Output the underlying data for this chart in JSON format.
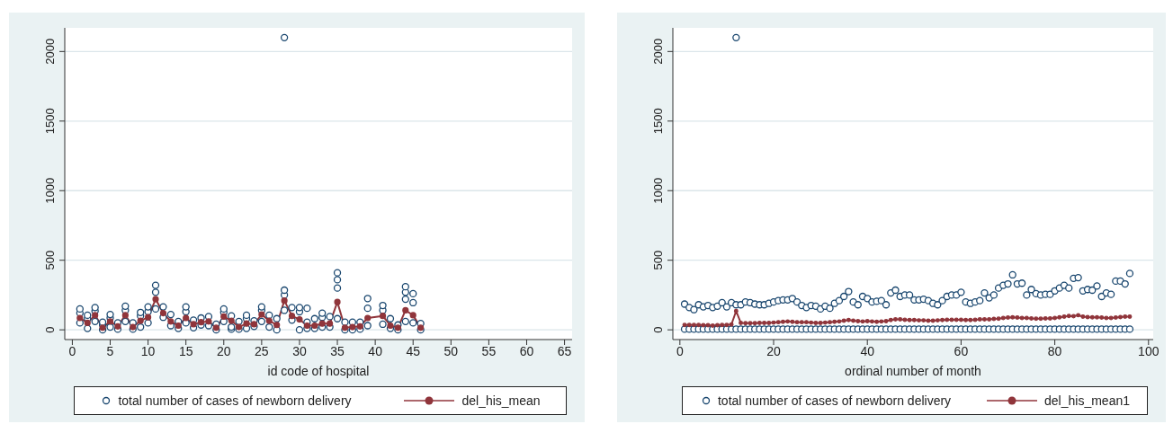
{
  "chart_data": [
    {
      "type": "scatter",
      "xlabel": "id code of hospital",
      "xlim": [
        -1,
        66
      ],
      "xticks": [
        0,
        5,
        10,
        15,
        20,
        25,
        30,
        35,
        40,
        45,
        50,
        55,
        60,
        65
      ],
      "ylim": [
        -70,
        2170
      ],
      "yticks": [
        0,
        500,
        1000,
        1500,
        2000
      ],
      "grid": "y",
      "legend": "bottom",
      "series": [
        {
          "name": "total number of cases of newborn delivery",
          "type": "scatter",
          "marker": "circle",
          "color": "#1a476f",
          "x": [
            1,
            1,
            1,
            2,
            2,
            2,
            3,
            3,
            3,
            4,
            4,
            4,
            5,
            5,
            5,
            6,
            6,
            7,
            7,
            7,
            8,
            8,
            9,
            9,
            9,
            10,
            10,
            10,
            11,
            11,
            11,
            12,
            12,
            13,
            13,
            14,
            14,
            15,
            15,
            15,
            16,
            16,
            17,
            17,
            18,
            18,
            19,
            19,
            20,
            20,
            20,
            21,
            21,
            21,
            22,
            22,
            23,
            23,
            23,
            24,
            24,
            25,
            25,
            25,
            26,
            26,
            27,
            27,
            28,
            28,
            28,
            28,
            29,
            29,
            30,
            30,
            30,
            31,
            31,
            31,
            32,
            32,
            33,
            33,
            33,
            34,
            34,
            35,
            35,
            35,
            35,
            36,
            36,
            37,
            37,
            38,
            38,
            39,
            39,
            39,
            41,
            41,
            41,
            42,
            42,
            43,
            43,
            44,
            44,
            44,
            44,
            45,
            45,
            45,
            46,
            46
          ],
          "values": [
            50,
            120,
            150,
            10,
            80,
            105,
            60,
            135,
            160,
            0,
            35,
            55,
            20,
            85,
            110,
            5,
            50,
            60,
            140,
            170,
            5,
            50,
            20,
            100,
            125,
            50,
            130,
            165,
            150,
            270,
            320,
            90,
            165,
            30,
            110,
            10,
            60,
            50,
            130,
            165,
            15,
            70,
            35,
            85,
            30,
            95,
            0,
            40,
            60,
            125,
            150,
            5,
            20,
            100,
            5,
            60,
            10,
            80,
            105,
            25,
            65,
            60,
            140,
            165,
            20,
            105,
            0,
            80,
            140,
            250,
            285,
            2100,
            70,
            160,
            0,
            130,
            160,
            10,
            55,
            155,
            10,
            80,
            20,
            90,
            120,
            20,
            95,
            80,
            300,
            360,
            410,
            0,
            55,
            0,
            55,
            5,
            55,
            30,
            155,
            225,
            40,
            140,
            175,
            10,
            80,
            0,
            35,
            60,
            220,
            270,
            310,
            50,
            195,
            260,
            0,
            45
          ]
        },
        {
          "name": "del_his_mean",
          "type": "line",
          "marker": "circle",
          "color": "#90353b",
          "x": [
            1,
            2,
            3,
            4,
            5,
            6,
            7,
            8,
            9,
            10,
            11,
            12,
            13,
            14,
            15,
            16,
            17,
            18,
            19,
            20,
            21,
            22,
            23,
            24,
            25,
            26,
            27,
            28,
            29,
            30,
            31,
            32,
            33,
            34,
            35,
            36,
            37,
            38,
            39,
            41,
            42,
            43,
            44,
            45,
            46
          ],
          "values": [
            85,
            50,
            105,
            15,
            60,
            25,
            105,
            20,
            65,
            90,
            220,
            120,
            60,
            30,
            85,
            40,
            55,
            60,
            15,
            95,
            65,
            20,
            45,
            40,
            110,
            65,
            35,
            210,
            100,
            75,
            30,
            30,
            45,
            45,
            200,
            15,
            20,
            25,
            85,
            100,
            30,
            15,
            140,
            105,
            15
          ]
        }
      ]
    },
    {
      "type": "scatter",
      "xlabel": "ordinal number of month",
      "xlim": [
        -1.5,
        101
      ],
      "xticks": [
        0,
        20,
        40,
        60,
        80,
        100
      ],
      "ylim": [
        -70,
        2170
      ],
      "yticks": [
        0,
        500,
        1000,
        1500,
        2000
      ],
      "grid": "y",
      "legend": "bottom",
      "series": [
        {
          "name": "total number of cases of newborn delivery",
          "type": "scatter",
          "marker": "circle",
          "color": "#1a476f",
          "x": [
            1,
            1,
            2,
            2,
            3,
            3,
            4,
            4,
            5,
            5,
            6,
            6,
            7,
            7,
            8,
            8,
            9,
            9,
            10,
            10,
            11,
            11,
            12,
            12,
            12,
            13,
            13,
            14,
            14,
            15,
            15,
            16,
            16,
            17,
            17,
            18,
            18,
            19,
            19,
            20,
            20,
            21,
            21,
            22,
            22,
            23,
            23,
            24,
            24,
            25,
            25,
            26,
            26,
            27,
            27,
            28,
            28,
            29,
            29,
            30,
            30,
            31,
            31,
            32,
            32,
            33,
            33,
            34,
            34,
            35,
            35,
            36,
            36,
            37,
            37,
            38,
            38,
            39,
            39,
            40,
            40,
            41,
            41,
            42,
            42,
            43,
            43,
            44,
            44,
            45,
            45,
            46,
            46,
            47,
            47,
            48,
            48,
            49,
            49,
            50,
            50,
            51,
            51,
            52,
            52,
            53,
            53,
            54,
            54,
            55,
            55,
            56,
            56,
            57,
            57,
            58,
            58,
            59,
            59,
            60,
            60,
            61,
            61,
            62,
            62,
            63,
            63,
            64,
            64,
            65,
            65,
            66,
            66,
            67,
            67,
            68,
            68,
            69,
            69,
            70,
            70,
            71,
            71,
            72,
            72,
            73,
            73,
            74,
            74,
            75,
            75,
            76,
            76,
            77,
            77,
            78,
            78,
            79,
            79,
            80,
            80,
            81,
            81,
            82,
            82,
            83,
            83,
            84,
            84,
            85,
            85,
            86,
            86,
            87,
            87,
            88,
            88,
            89,
            89,
            90,
            90,
            91,
            91,
            92,
            92,
            93,
            93,
            94,
            94,
            95,
            95,
            96,
            96
          ],
          "values": [
            5,
            185,
            5,
            160,
            5,
            145,
            5,
            180,
            5,
            165,
            5,
            175,
            5,
            160,
            5,
            170,
            5,
            195,
            5,
            165,
            5,
            195,
            5,
            180,
            2100,
            5,
            180,
            5,
            200,
            5,
            195,
            5,
            185,
            5,
            180,
            5,
            180,
            5,
            190,
            5,
            200,
            5,
            210,
            5,
            215,
            5,
            215,
            5,
            225,
            5,
            200,
            5,
            175,
            5,
            160,
            5,
            175,
            5,
            170,
            5,
            150,
            5,
            170,
            5,
            155,
            5,
            190,
            5,
            210,
            5,
            240,
            5,
            275,
            5,
            200,
            5,
            180,
            5,
            240,
            5,
            225,
            5,
            200,
            5,
            205,
            5,
            210,
            5,
            180,
            5,
            265,
            5,
            285,
            5,
            240,
            5,
            250,
            5,
            250,
            5,
            215,
            5,
            215,
            5,
            220,
            5,
            210,
            5,
            190,
            5,
            180,
            5,
            210,
            5,
            240,
            5,
            250,
            5,
            250,
            5,
            270,
            5,
            200,
            5,
            190,
            5,
            200,
            5,
            210,
            5,
            265,
            5,
            230,
            5,
            250,
            5,
            300,
            5,
            320,
            5,
            330,
            5,
            395,
            5,
            330,
            5,
            335,
            5,
            250,
            5,
            290,
            5,
            260,
            5,
            250,
            5,
            255,
            5,
            255,
            5,
            280,
            5,
            300,
            5,
            320,
            5,
            300,
            5,
            370,
            5,
            375,
            5,
            280,
            5,
            290,
            5,
            285,
            5,
            315,
            5,
            240,
            5,
            265,
            5,
            255,
            5,
            350,
            5,
            350,
            5,
            330,
            5,
            405
          ]
        },
        {
          "name": "del_his_mean1",
          "type": "line",
          "marker": "circle",
          "color": "#90353b",
          "x": [
            1,
            2,
            3,
            4,
            5,
            6,
            7,
            8,
            9,
            10,
            11,
            12,
            13,
            14,
            15,
            16,
            17,
            18,
            19,
            20,
            21,
            22,
            23,
            24,
            25,
            26,
            27,
            28,
            29,
            30,
            31,
            32,
            33,
            34,
            35,
            36,
            37,
            38,
            39,
            40,
            41,
            42,
            43,
            44,
            45,
            46,
            47,
            48,
            49,
            50,
            51,
            52,
            53,
            54,
            55,
            56,
            57,
            58,
            59,
            60,
            61,
            62,
            63,
            64,
            65,
            66,
            67,
            68,
            69,
            70,
            71,
            72,
            73,
            74,
            75,
            76,
            77,
            78,
            79,
            80,
            81,
            82,
            83,
            84,
            85,
            86,
            87,
            88,
            89,
            90,
            91,
            92,
            93,
            94,
            95,
            96
          ],
          "values": [
            35,
            35,
            35,
            35,
            33,
            33,
            30,
            33,
            35,
            35,
            38,
            135,
            50,
            48,
            48,
            48,
            50,
            50,
            50,
            52,
            55,
            58,
            60,
            58,
            55,
            55,
            55,
            52,
            50,
            50,
            52,
            55,
            58,
            60,
            65,
            70,
            65,
            62,
            60,
            62,
            60,
            58,
            60,
            62,
            70,
            75,
            75,
            72,
            70,
            70,
            68,
            68,
            65,
            65,
            68,
            70,
            72,
            72,
            72,
            72,
            70,
            70,
            72,
            75,
            75,
            75,
            78,
            80,
            85,
            88,
            90,
            88,
            85,
            85,
            82,
            80,
            80,
            82,
            82,
            85,
            90,
            95,
            100,
            98,
            105,
            95,
            92,
            90,
            90,
            88,
            85,
            85,
            88,
            92,
            95,
            95
          ]
        }
      ]
    }
  ]
}
